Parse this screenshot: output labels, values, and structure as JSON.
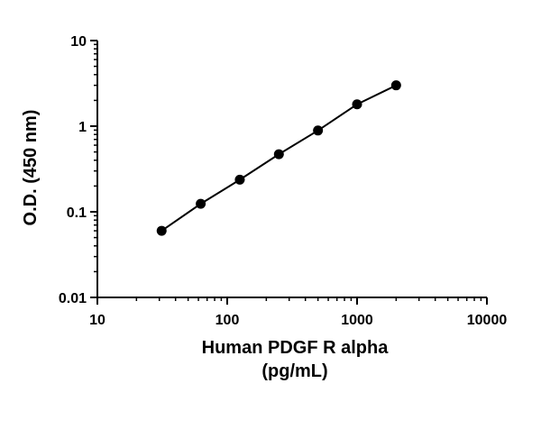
{
  "chart_data": {
    "type": "scatter",
    "title": "",
    "xlabel": "Human PDGF R alpha",
    "xlabel_line2": "(pg/mL)",
    "ylabel": "O.D. (450 nm)",
    "x_scale": "log",
    "y_scale": "log",
    "xlim": [
      10,
      10000
    ],
    "ylim": [
      0.01,
      10
    ],
    "x_ticks": [
      10,
      100,
      1000,
      10000
    ],
    "x_tick_labels": [
      "10",
      "100",
      "1000",
      "10000"
    ],
    "y_ticks": [
      0.01,
      0.1,
      1,
      10
    ],
    "y_tick_labels": [
      "0.01",
      "0.1",
      "1",
      "10"
    ],
    "grid": false,
    "legend": "none",
    "fit_line": true,
    "series": [
      {
        "x": [
          31.25,
          62.5,
          125,
          250,
          500,
          1000,
          2000
        ],
        "y": [
          0.06,
          0.124,
          0.237,
          0.47,
          0.89,
          1.8,
          3.0
        ]
      }
    ],
    "colors": {
      "marker": "#000000",
      "line": "#000000",
      "axis": "#000000"
    }
  }
}
